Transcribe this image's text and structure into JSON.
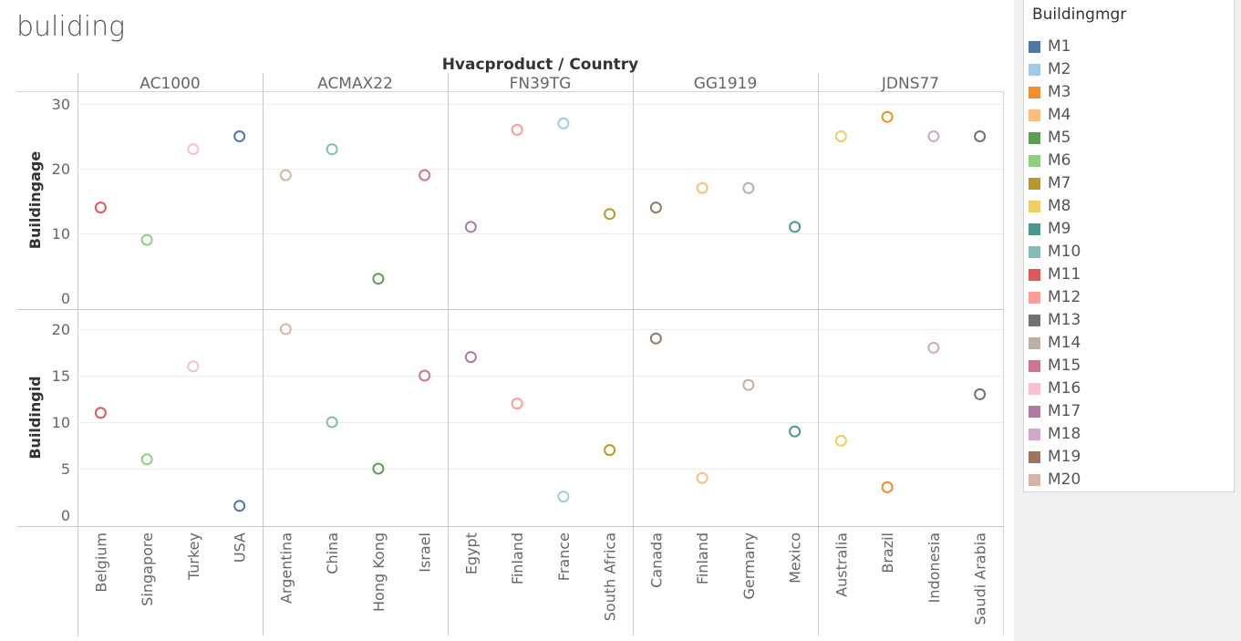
{
  "title": "buliding",
  "colors": {
    "M1": "#4e79a7",
    "M2": "#a0cbe8",
    "M3": "#f28e2b",
    "M4": "#ffbe7d",
    "M5": "#59a14f",
    "M6": "#8cd17d",
    "M7": "#b6992d",
    "M8": "#f1ce63",
    "M9": "#499894",
    "M10": "#86bcb6",
    "M11": "#e15759",
    "M12": "#ff9d9a",
    "M13": "#79706e",
    "M14": "#bab0ac",
    "M15": "#d37295",
    "M16": "#fabfd2",
    "M17": "#b07aa1",
    "M18": "#d4a6c8",
    "M19": "#9d7660",
    "M20": "#d7b5a6"
  },
  "legend": {
    "title": "Buildingmgr",
    "items": [
      "M1",
      "M2",
      "M3",
      "M4",
      "M5",
      "M6",
      "M7",
      "M8",
      "M9",
      "M10",
      "M11",
      "M12",
      "M13",
      "M14",
      "M15",
      "M16",
      "M17",
      "M18",
      "M19",
      "M20"
    ]
  },
  "chart_data": {
    "type": "scatter",
    "column_header_title": "Hvacproduct / Country",
    "products": [
      {
        "name": "AC1000",
        "countries": [
          "Belgium",
          "Singapore",
          "Turkey",
          "USA"
        ]
      },
      {
        "name": "ACMAX22",
        "countries": [
          "Argentina",
          "China",
          "Hong Kong",
          "Israel"
        ]
      },
      {
        "name": "FN39TG",
        "countries": [
          "Egypt",
          "Finland",
          "France",
          "South Africa"
        ]
      },
      {
        "name": "GG1919",
        "countries": [
          "Canada",
          "Finland",
          "Germany",
          "Mexico"
        ]
      },
      {
        "name": "JDNS77",
        "countries": [
          "Australia",
          "Brazil",
          "Indonesia",
          "Saudi Arabia"
        ]
      }
    ],
    "rows": [
      {
        "label": "Buildingage",
        "ylim": [
          -2,
          32
        ],
        "ticks": [
          0,
          10,
          20,
          30
        ]
      },
      {
        "label": "Buildingid",
        "ylim": [
          -1,
          21.5
        ],
        "ticks": [
          0,
          5,
          10,
          15,
          20
        ]
      }
    ],
    "points": [
      {
        "product": "AC1000",
        "country": "Belgium",
        "mgr": "M11",
        "buildingage": 14,
        "buildingid": 11
      },
      {
        "product": "AC1000",
        "country": "Singapore",
        "mgr": "M6",
        "buildingage": 9,
        "buildingid": 6
      },
      {
        "product": "AC1000",
        "country": "Turkey",
        "mgr": "M16",
        "buildingage": 23,
        "buildingid": 16
      },
      {
        "product": "AC1000",
        "country": "USA",
        "mgr": "M1",
        "buildingage": 25,
        "buildingid": 1
      },
      {
        "product": "ACMAX22",
        "country": "Argentina",
        "mgr": "M20",
        "buildingage": 19,
        "buildingid": 20
      },
      {
        "product": "ACMAX22",
        "country": "China",
        "mgr": "M10",
        "buildingage": 23,
        "buildingid": 10
      },
      {
        "product": "ACMAX22",
        "country": "Hong Kong",
        "mgr": "M5",
        "buildingage": 3,
        "buildingid": 5
      },
      {
        "product": "ACMAX22",
        "country": "Israel",
        "mgr": "M15",
        "buildingage": 19,
        "buildingid": 15
      },
      {
        "product": "FN39TG",
        "country": "Egypt",
        "mgr": "M17",
        "buildingage": 11,
        "buildingid": 17
      },
      {
        "product": "FN39TG",
        "country": "Finland",
        "mgr": "M12",
        "buildingage": 26,
        "buildingid": 12
      },
      {
        "product": "FN39TG",
        "country": "France",
        "mgr": "M2",
        "buildingage": 27,
        "buildingid": 2
      },
      {
        "product": "FN39TG",
        "country": "South Africa",
        "mgr": "M7",
        "buildingage": 13,
        "buildingid": 7
      },
      {
        "product": "GG1919",
        "country": "Canada",
        "mgr": "M19",
        "buildingage": 14,
        "buildingid": 19
      },
      {
        "product": "GG1919",
        "country": "Finland",
        "mgr": "M4",
        "buildingage": 17,
        "buildingid": 4
      },
      {
        "product": "GG1919",
        "country": "Germany",
        "mgr": "M14",
        "buildingage": 17,
        "buildingid": 14
      },
      {
        "product": "GG1919",
        "country": "Mexico",
        "mgr": "M9",
        "buildingage": 11,
        "buildingid": 9
      },
      {
        "product": "JDNS77",
        "country": "Australia",
        "mgr": "M8",
        "buildingage": 25,
        "buildingid": 8
      },
      {
        "product": "JDNS77",
        "country": "Brazil",
        "mgr": "M3",
        "buildingage": 28,
        "buildingid": 3
      },
      {
        "product": "JDNS77",
        "country": "Indonesia",
        "mgr": "M18",
        "buildingage": 25,
        "buildingid": 18
      },
      {
        "product": "JDNS77",
        "country": "Saudi Arabia",
        "mgr": "M13",
        "buildingage": 25,
        "buildingid": 13
      }
    ]
  }
}
